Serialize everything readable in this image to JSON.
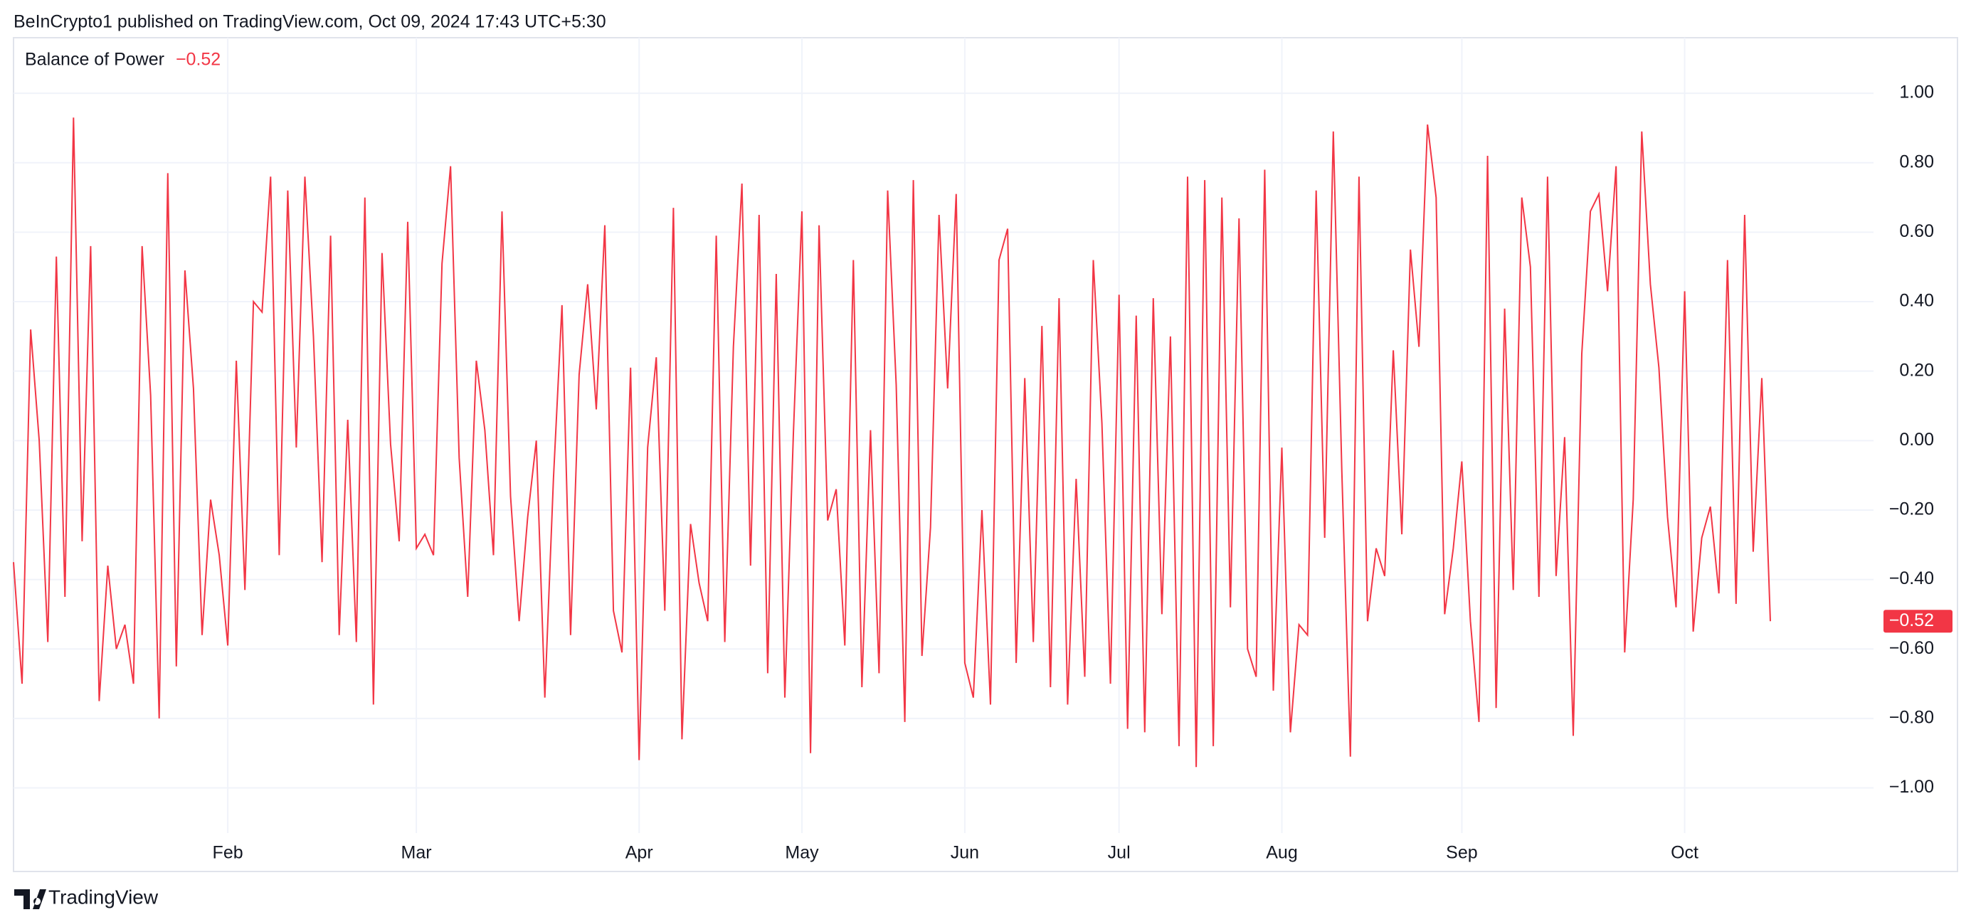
{
  "header": {
    "text": "BeInCrypto1 published on TradingView.com, Oct 09, 2024 17:43 UTC+5:30"
  },
  "footer": {
    "brand": "TradingView"
  },
  "chart_data": {
    "type": "line",
    "title": "Balance of Power",
    "last_value": {
      "value": -0.52,
      "label": "−0.52"
    },
    "categories": [
      null,
      null,
      null,
      null,
      null,
      null,
      null,
      null,
      null,
      null,
      null,
      null,
      null,
      null,
      null,
      null,
      null,
      null,
      null,
      null,
      null,
      null,
      null,
      null,
      null,
      "Feb",
      null,
      null,
      null,
      null,
      null,
      null,
      null,
      null,
      null,
      null,
      null,
      null,
      null,
      null,
      null,
      null,
      null,
      null,
      null,
      null,
      null,
      "Mar",
      null,
      null,
      null,
      null,
      null,
      null,
      null,
      null,
      null,
      null,
      null,
      null,
      null,
      null,
      null,
      null,
      null,
      null,
      null,
      null,
      null,
      null,
      null,
      null,
      null,
      "Apr",
      null,
      null,
      null,
      null,
      null,
      null,
      null,
      null,
      null,
      null,
      null,
      null,
      null,
      null,
      null,
      null,
      null,
      null,
      "May",
      null,
      null,
      null,
      null,
      null,
      null,
      null,
      null,
      null,
      null,
      null,
      null,
      null,
      null,
      null,
      null,
      null,
      null,
      "Jun",
      null,
      null,
      null,
      null,
      null,
      null,
      null,
      null,
      null,
      null,
      null,
      null,
      null,
      null,
      null,
      null,
      null,
      "Jul",
      null,
      null,
      null,
      null,
      null,
      null,
      null,
      null,
      null,
      null,
      null,
      null,
      null,
      null,
      null,
      null,
      null,
      null,
      "Aug",
      null,
      null,
      null,
      null,
      null,
      null,
      null,
      null,
      null,
      null,
      null,
      null,
      null,
      null,
      null,
      null,
      null,
      null,
      null,
      null,
      "Sep",
      null,
      null,
      null,
      null,
      null,
      null,
      null,
      null,
      null,
      null,
      null,
      null,
      null,
      null,
      null,
      null,
      null,
      null,
      null,
      null,
      null,
      null,
      null,
      null,
      null,
      "Oct",
      null,
      null,
      null,
      null,
      null,
      null,
      null,
      null,
      null,
      null
    ],
    "series": [
      {
        "name": "Balance of Power",
        "color": "#f23645",
        "values": [
          -0.35,
          -0.7,
          0.32,
          0.0,
          -0.58,
          0.53,
          -0.45,
          0.93,
          -0.29,
          0.56,
          -0.75,
          -0.36,
          -0.6,
          -0.53,
          -0.7,
          0.56,
          0.13,
          -0.8,
          0.77,
          -0.65,
          0.49,
          0.15,
          -0.56,
          -0.17,
          -0.33,
          -0.59,
          0.23,
          -0.43,
          0.4,
          0.37,
          0.76,
          -0.33,
          0.72,
          -0.02,
          0.76,
          0.3,
          -0.35,
          0.59,
          -0.56,
          0.06,
          -0.58,
          0.7,
          -0.76,
          0.54,
          -0.01,
          -0.29,
          0.63,
          -0.31,
          -0.27,
          -0.33,
          0.51,
          0.79,
          -0.05,
          -0.45,
          0.23,
          0.03,
          -0.33,
          0.66,
          -0.16,
          -0.52,
          -0.22,
          0.0,
          -0.74,
          -0.11,
          0.39,
          -0.56,
          0.19,
          0.45,
          0.09,
          0.62,
          -0.49,
          -0.61,
          0.21,
          -0.92,
          -0.02,
          0.24,
          -0.49,
          0.67,
          -0.86,
          -0.24,
          -0.41,
          -0.52,
          0.59,
          -0.58,
          0.27,
          0.74,
          -0.36,
          0.65,
          -0.67,
          0.48,
          -0.74,
          0.02,
          0.66,
          -0.9,
          0.62,
          -0.23,
          -0.14,
          -0.59,
          0.52,
          -0.71,
          0.03,
          -0.67,
          0.72,
          0.16,
          -0.81,
          0.75,
          -0.62,
          -0.25,
          0.65,
          0.15,
          0.71,
          -0.64,
          -0.74,
          -0.2,
          -0.76,
          0.52,
          0.61,
          -0.64,
          0.18,
          -0.58,
          0.33,
          -0.71,
          0.41,
          -0.76,
          -0.11,
          -0.68,
          0.52,
          0.05,
          -0.7,
          0.42,
          -0.83,
          0.36,
          -0.84,
          0.41,
          -0.5,
          0.3,
          -0.88,
          0.76,
          -0.94,
          0.75,
          -0.88,
          0.7,
          -0.48,
          0.64,
          -0.6,
          -0.68,
          0.78,
          -0.72,
          -0.02,
          -0.84,
          -0.53,
          -0.56,
          0.72,
          -0.28,
          0.89,
          -0.09,
          -0.91,
          0.76,
          -0.52,
          -0.31,
          -0.39,
          0.26,
          -0.27,
          0.55,
          0.27,
          0.91,
          0.7,
          -0.5,
          -0.31,
          -0.06,
          -0.52,
          -0.81,
          0.82,
          -0.77,
          0.38,
          -0.43,
          0.7,
          0.5,
          -0.45,
          0.76,
          -0.39,
          0.01,
          -0.85,
          0.25,
          0.66,
          0.71,
          0.43,
          0.79,
          -0.61,
          -0.17,
          0.89,
          0.45,
          0.21,
          -0.22,
          -0.48,
          0.43,
          -0.55,
          -0.28,
          -0.19,
          -0.44,
          0.52,
          -0.47,
          0.65,
          -0.32,
          0.18,
          -0.52
        ]
      }
    ],
    "ylim": [
      -1.13,
      1.16
    ],
    "yticks": [
      {
        "value": 1,
        "label": "1.00"
      },
      {
        "value": 0.8,
        "label": "0.80"
      },
      {
        "value": 0.6,
        "label": "0.60"
      },
      {
        "value": 0.4,
        "label": "0.40"
      },
      {
        "value": 0.2,
        "label": "0.20"
      },
      {
        "value": 0,
        "label": "0.00"
      },
      {
        "value": -0.2,
        "label": "−0.20"
      },
      {
        "value": -0.4,
        "label": "−0.40"
      },
      {
        "value": -0.6,
        "label": "−0.60"
      },
      {
        "value": -0.8,
        "label": "−0.80"
      },
      {
        "value": -1,
        "label": "−1.00"
      }
    ],
    "grid": true
  }
}
